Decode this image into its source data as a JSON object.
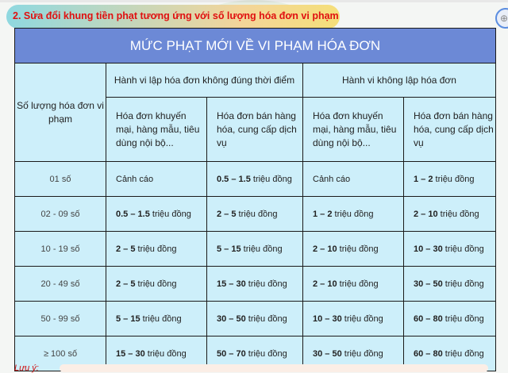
{
  "heading": "2. Sửa đổi khung tiền phạt tương ứng với số lượng hóa đơn vi phạm",
  "zoom_icon": "magnifier-plus-icon",
  "table": {
    "title": "MỨC PHẠT MỚI VỀ VI PHẠM HÓA ĐƠN",
    "col0": "Số lượng hóa đơn vi phạm",
    "group1": "Hành vi lập hóa đơn không đúng thời điểm",
    "group2": "Hành vi không lập hóa đơn",
    "sub": [
      "Hóa đơn khuyến mại, hàng mẫu, tiêu dùng nội bộ...",
      "Hóa đơn bán hàng hóa, cung cấp dịch vụ",
      "Hóa đơn khuyến mại, hàng mẫu, tiêu dùng nội bộ...",
      "Hóa đơn bán hàng hóa, cung cấp dịch vụ"
    ],
    "unit": "triệu đồng",
    "rows": [
      {
        "count": "01 số",
        "cells": [
          {
            "v": "",
            "t": "Cảnh cáo"
          },
          {
            "v": "0.5 – 1.5",
            "t": "triệu đồng"
          },
          {
            "v": "",
            "t": "Cảnh cáo"
          },
          {
            "v": "1 – 2",
            "t": "triệu đồng"
          }
        ]
      },
      {
        "count": "02 - 09 số",
        "cells": [
          {
            "v": "0.5 – 1.5",
            "t": "triệu đồng"
          },
          {
            "v": "2 – 5",
            "t": "triệu đồng"
          },
          {
            "v": "1 – 2",
            "t": "triệu đồng"
          },
          {
            "v": "2 – 10",
            "t": "triệu đồng"
          }
        ]
      },
      {
        "count": "10 - 19 số",
        "cells": [
          {
            "v": "2 – 5",
            "t": "triệu đồng"
          },
          {
            "v": "5 – 15",
            "t": "triệu đồng"
          },
          {
            "v": "2 – 10",
            "t": "triệu đồng"
          },
          {
            "v": "10 – 30",
            "t": "triệu đồng"
          }
        ]
      },
      {
        "count": "20 - 49 số",
        "cells": [
          {
            "v": "2 – 5",
            "t": "triệu đồng"
          },
          {
            "v": "15 – 30",
            "t": "triệu đồng"
          },
          {
            "v": "2 – 10",
            "t": "triệu đồng"
          },
          {
            "v": "30 – 50",
            "t": "triệu đồng"
          }
        ]
      },
      {
        "count": "50 - 99 số",
        "cells": [
          {
            "v": "5 – 15",
            "t": "triệu đồng"
          },
          {
            "v": "30 – 50",
            "t": "triệu đồng"
          },
          {
            "v": "10 – 30",
            "t": "triệu đồng"
          },
          {
            "v": "60 – 80",
            "t": "triệu đồng"
          }
        ]
      },
      {
        "count": "≥ 100 số",
        "cells": [
          {
            "v": "15 – 30",
            "t": "triệu đồng"
          },
          {
            "v": "50 – 70",
            "t": "triệu đồng"
          },
          {
            "v": "30 – 50",
            "t": "triệu đồng"
          },
          {
            "v": "60 – 80",
            "t": "triệu đồng"
          }
        ]
      }
    ]
  },
  "note": "Lưu ý:"
}
